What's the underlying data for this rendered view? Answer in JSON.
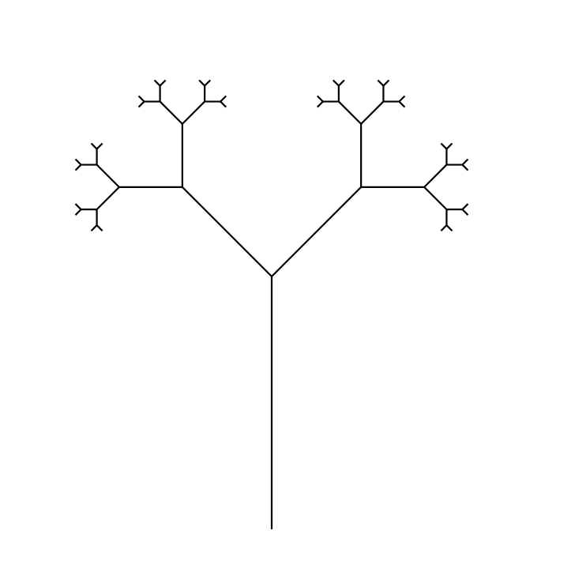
{
  "figure": {
    "kind": "binary fractal tree",
    "background_color": "#ffffff",
    "line_color": "#000000",
    "branch_angle_degrees": 45,
    "length_ratio": 0.5,
    "depth_levels": 6,
    "visible_text": []
  }
}
